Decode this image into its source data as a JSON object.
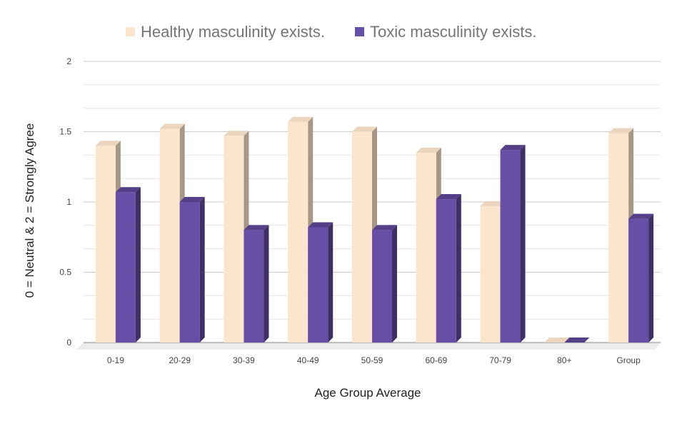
{
  "chart_data": {
    "type": "bar",
    "title": "",
    "xlabel": "Age Group Average",
    "ylabel": "0 = Neutral & 2 = Strongly Agree",
    "ylim": [
      0,
      2
    ],
    "yticks": [
      "0",
      "0.5",
      "1",
      "1.5",
      "2"
    ],
    "ytick_values": [
      0,
      0.5,
      1,
      1.5,
      2
    ],
    "grid": true,
    "legend_position": "top-center",
    "categories": [
      "0-19",
      "20-29",
      "30-39",
      "40-49",
      "50-59",
      "60-69",
      "70-79",
      "80+",
      "Group"
    ],
    "series": [
      {
        "name": "Healthy masculinity exists.",
        "color": "#fce5cd",
        "values": [
          1.4,
          1.52,
          1.47,
          1.57,
          1.5,
          1.35,
          0.97,
          0,
          1.49
        ]
      },
      {
        "name": "Toxic masculinity exists.",
        "color": "#674ea7",
        "values": [
          1.07,
          1.0,
          0.8,
          0.82,
          0.8,
          1.02,
          1.37,
          0,
          0.88
        ]
      }
    ]
  }
}
